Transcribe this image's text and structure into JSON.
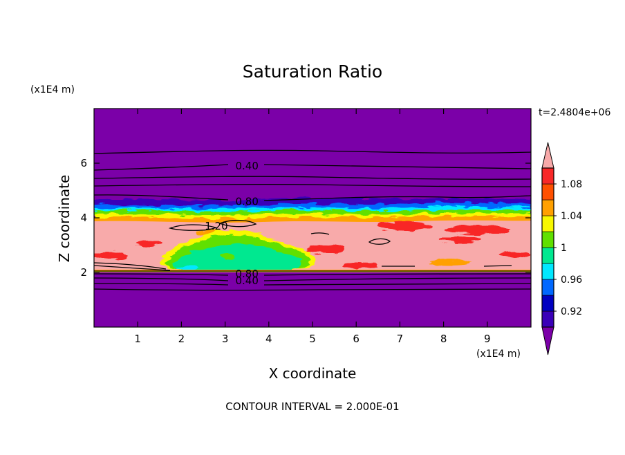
{
  "chart_data": {
    "type": "heatmap",
    "title": "Saturation Ratio",
    "xlabel": "X coordinate",
    "ylabel": "Z coordinate",
    "x_multiplier": "(x1E4 m)",
    "y_multiplier": "(x1E4 m)",
    "time_label": "t=2.4804e+06",
    "footer": "CONTOUR INTERVAL = 2.000E-01",
    "xlim": [
      0,
      10
    ],
    "ylim": [
      0,
      8
    ],
    "x_ticks": [
      1,
      2,
      3,
      4,
      5,
      6,
      7,
      8,
      9
    ],
    "y_ticks": [
      2,
      4,
      6
    ],
    "colorbar": {
      "levels": [
        0.9,
        0.92,
        0.94,
        0.96,
        0.98,
        1.0,
        1.02,
        1.04,
        1.06,
        1.08,
        1.1
      ],
      "labeled_levels": [
        "0.92",
        "0.96",
        "1",
        "1.04",
        "1.08"
      ],
      "colors": [
        "#7b00a8",
        "#3a00b8",
        "#0000c0",
        "#0068ff",
        "#00e8ff",
        "#00e890",
        "#60e000",
        "#f8f800",
        "#ffa000",
        "#ff5000",
        "#f82828",
        "#f8aaaa"
      ]
    },
    "contour_labels": [
      {
        "text": "0.40",
        "x": 3.5,
        "z": 5.9
      },
      {
        "text": "0.80",
        "x": 3.5,
        "z": 4.6
      },
      {
        "text": "1.20",
        "x": 2.8,
        "z": 3.7
      },
      {
        "text": "0.80",
        "x": 3.5,
        "z": 1.95
      },
      {
        "text": "0.40",
        "x": 3.5,
        "z": 1.7
      }
    ],
    "regions": [
      {
        "name": "upper-dry-layer",
        "z_range": [
          4.6,
          8
        ],
        "value": 0.5
      },
      {
        "name": "moist-transition-band",
        "z_range": [
          4.1,
          4.6
        ],
        "value": 1.0
      },
      {
        "name": "supersaturated-layer",
        "z_range": [
          2.1,
          4.0
        ],
        "value": 1.1
      },
      {
        "name": "cloud-core",
        "x_range": [
          1.7,
          5.0
        ],
        "z_range": [
          2.1,
          3.6
        ],
        "value": 0.98
      },
      {
        "name": "lower-dry-layer",
        "z_range": [
          0,
          2.0
        ],
        "value": 0.5
      }
    ]
  }
}
